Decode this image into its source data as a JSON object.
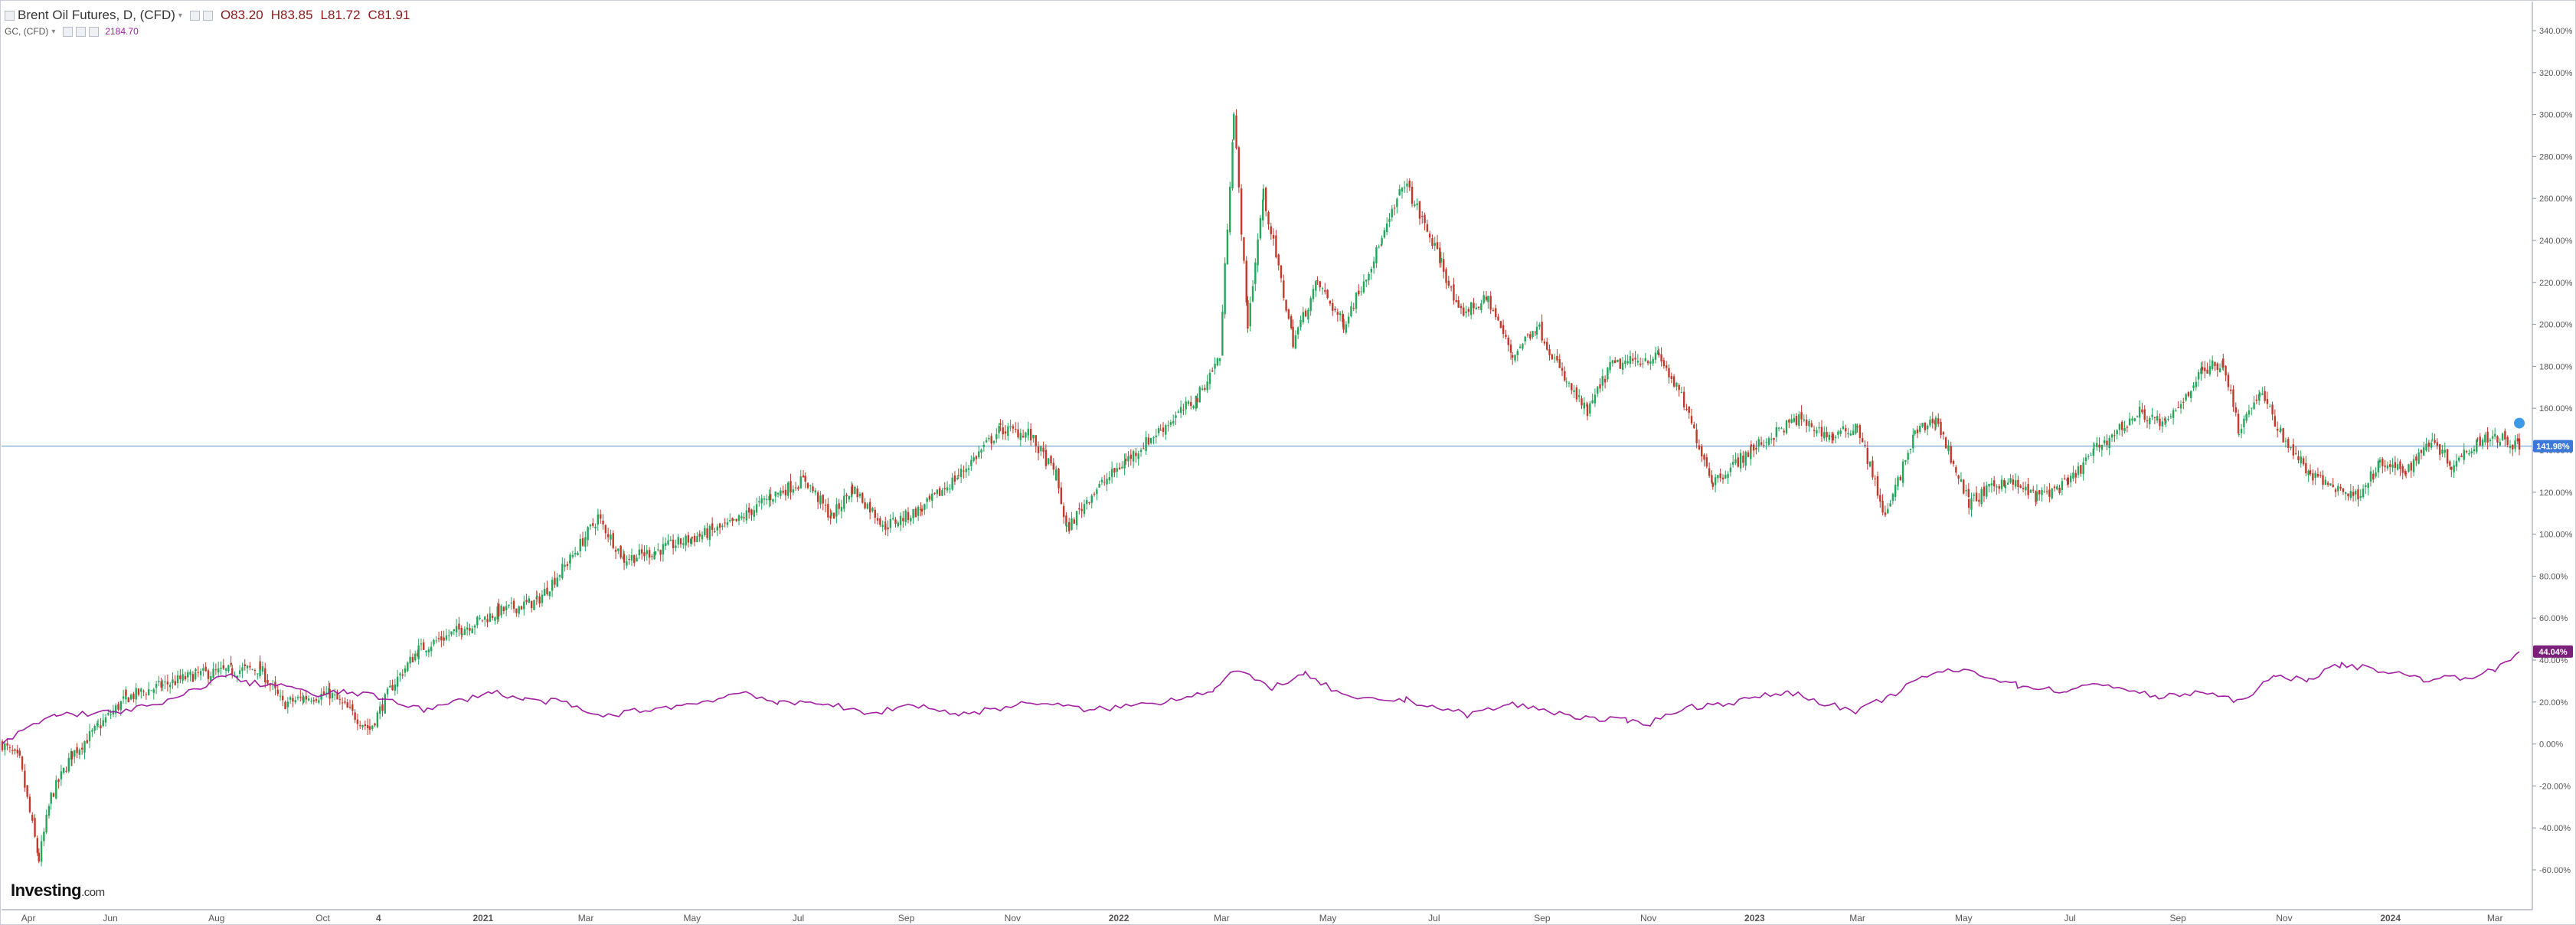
{
  "legend": {
    "instrument": "Brent Oil Futures, D, (CFD)",
    "open": "O83.20",
    "high": "H83.85",
    "low": "L81.72",
    "close": "C81.91",
    "compare_symbol": "GC, (CFD)",
    "compare_value": "2184.70"
  },
  "logo": {
    "name": "Investing",
    "suffix": ".com"
  },
  "colors": {
    "up_candle": "#26a65b",
    "down_candle": "#c0392b",
    "compare_line": "#a020a0",
    "current_line": "#8ab4d8",
    "current_label_bg": "#3c78d8",
    "compare_label_bg": "#7a1f7a"
  },
  "chart_data": {
    "type": "line",
    "title": "Brent Oil Futures, D, (CFD)",
    "xlabel": "",
    "ylabel": "",
    "y_unit": "%",
    "ylim": [
      -70,
      350
    ],
    "x_range": [
      "2020-03-31",
      "2024-03-15"
    ],
    "grid": false,
    "x_ticks": [
      {
        "date": "2020-04-15",
        "label": "Apr"
      },
      {
        "date": "2020-06-01",
        "label": "Jun"
      },
      {
        "date": "2020-08-01",
        "label": "Aug"
      },
      {
        "date": "2020-10-01",
        "label": "Oct"
      },
      {
        "date": "2020-11-02",
        "label": "4"
      },
      {
        "date": "2021-01-01",
        "label": "2021"
      },
      {
        "date": "2021-03-01",
        "label": "Mar"
      },
      {
        "date": "2021-05-01",
        "label": "May"
      },
      {
        "date": "2021-07-01",
        "label": "Jul"
      },
      {
        "date": "2021-09-01",
        "label": "Sep"
      },
      {
        "date": "2021-11-01",
        "label": "Nov"
      },
      {
        "date": "2022-01-01",
        "label": "2022"
      },
      {
        "date": "2022-03-01",
        "label": "Mar"
      },
      {
        "date": "2022-05-01",
        "label": "May"
      },
      {
        "date": "2022-07-01",
        "label": "Jul"
      },
      {
        "date": "2022-09-01",
        "label": "Sep"
      },
      {
        "date": "2022-11-01",
        "label": "Nov"
      },
      {
        "date": "2023-01-01",
        "label": "2023"
      },
      {
        "date": "2023-03-01",
        "label": "Mar"
      },
      {
        "date": "2023-05-01",
        "label": "May"
      },
      {
        "date": "2023-07-01",
        "label": "Jul"
      },
      {
        "date": "2023-09-01",
        "label": "Sep"
      },
      {
        "date": "2023-11-01",
        "label": "Nov"
      },
      {
        "date": "2024-01-01",
        "label": "2024"
      },
      {
        "date": "2024-03-01",
        "label": "Mar"
      }
    ],
    "y_ticks": [
      {
        "value": 340,
        "label": "340.00%"
      },
      {
        "value": 320,
        "label": "320.00%"
      },
      {
        "value": 300,
        "label": "300.00%"
      },
      {
        "value": 280,
        "label": "280.00%"
      },
      {
        "value": 260,
        "label": "260.00%"
      },
      {
        "value": 240,
        "label": "240.00%"
      },
      {
        "value": 220,
        "label": "220.00%"
      },
      {
        "value": 200,
        "label": "200.00%"
      },
      {
        "value": 180,
        "label": "180.00%"
      },
      {
        "value": 160,
        "label": "160.00%"
      },
      {
        "value": 140,
        "label": "140.00%"
      },
      {
        "value": 120,
        "label": "120.00%"
      },
      {
        "value": 100,
        "label": "100.00%"
      },
      {
        "value": 80,
        "label": "80.00%"
      },
      {
        "value": 60,
        "label": "60.00%"
      },
      {
        "value": 40,
        "label": "40.00%"
      },
      {
        "value": 20,
        "label": "20.00%"
      },
      {
        "value": 0,
        "label": "0.00%"
      },
      {
        "value": -20,
        "label": "-20.00%"
      },
      {
        "value": -40,
        "label": "-40.00%"
      },
      {
        "value": -60,
        "label": "-60.00%"
      }
    ],
    "current_levels": [
      {
        "value": 141.98,
        "label": "141.98%"
      },
      {
        "value": 44.04,
        "label": "44.04%"
      }
    ],
    "series": [
      {
        "name": "Brent Oil Futures, D, (CFD)",
        "style": "candlestick",
        "points": [
          {
            "x": "2020-03-31",
            "y": 0
          },
          {
            "x": "2020-04-10",
            "y": -8
          },
          {
            "x": "2020-04-21",
            "y": -55
          },
          {
            "x": "2020-04-28",
            "y": -25
          },
          {
            "x": "2020-05-10",
            "y": -5
          },
          {
            "x": "2020-05-25",
            "y": 8
          },
          {
            "x": "2020-06-10",
            "y": 22
          },
          {
            "x": "2020-07-01",
            "y": 28
          },
          {
            "x": "2020-07-20",
            "y": 33
          },
          {
            "x": "2020-08-10",
            "y": 35
          },
          {
            "x": "2020-08-26",
            "y": 36
          },
          {
            "x": "2020-09-08",
            "y": 19
          },
          {
            "x": "2020-09-20",
            "y": 22
          },
          {
            "x": "2020-10-05",
            "y": 24
          },
          {
            "x": "2020-10-28",
            "y": 7
          },
          {
            "x": "2020-11-10",
            "y": 28
          },
          {
            "x": "2020-11-25",
            "y": 45
          },
          {
            "x": "2020-12-20",
            "y": 55
          },
          {
            "x": "2021-01-10",
            "y": 63
          },
          {
            "x": "2021-02-01",
            "y": 68
          },
          {
            "x": "2021-02-20",
            "y": 88
          },
          {
            "x": "2021-03-08",
            "y": 108
          },
          {
            "x": "2021-03-23",
            "y": 88
          },
          {
            "x": "2021-04-10",
            "y": 92
          },
          {
            "x": "2021-05-01",
            "y": 98
          },
          {
            "x": "2021-05-25",
            "y": 105
          },
          {
            "x": "2021-06-15",
            "y": 118
          },
          {
            "x": "2021-07-05",
            "y": 126
          },
          {
            "x": "2021-07-20",
            "y": 108
          },
          {
            "x": "2021-08-01",
            "y": 122
          },
          {
            "x": "2021-08-20",
            "y": 104
          },
          {
            "x": "2021-09-10",
            "y": 112
          },
          {
            "x": "2021-10-01",
            "y": 128
          },
          {
            "x": "2021-10-25",
            "y": 150
          },
          {
            "x": "2021-11-10",
            "y": 148
          },
          {
            "x": "2021-11-26",
            "y": 128
          },
          {
            "x": "2021-12-02",
            "y": 102
          },
          {
            "x": "2021-12-15",
            "y": 118
          },
          {
            "x": "2022-01-05",
            "y": 135
          },
          {
            "x": "2022-01-25",
            "y": 150
          },
          {
            "x": "2022-02-15",
            "y": 165
          },
          {
            "x": "2022-02-28",
            "y": 185
          },
          {
            "x": "2022-03-08",
            "y": 300
          },
          {
            "x": "2022-03-16",
            "y": 200
          },
          {
            "x": "2022-03-25",
            "y": 262
          },
          {
            "x": "2022-04-11",
            "y": 192
          },
          {
            "x": "2022-04-25",
            "y": 220
          },
          {
            "x": "2022-05-10",
            "y": 200
          },
          {
            "x": "2022-06-01",
            "y": 240
          },
          {
            "x": "2022-06-14",
            "y": 268
          },
          {
            "x": "2022-07-05",
            "y": 230
          },
          {
            "x": "2022-07-15",
            "y": 205
          },
          {
            "x": "2022-08-01",
            "y": 212
          },
          {
            "x": "2022-08-15",
            "y": 185
          },
          {
            "x": "2022-08-29",
            "y": 200
          },
          {
            "x": "2022-09-15",
            "y": 172
          },
          {
            "x": "2022-09-27",
            "y": 158
          },
          {
            "x": "2022-10-10",
            "y": 180
          },
          {
            "x": "2022-11-07",
            "y": 185
          },
          {
            "x": "2022-11-20",
            "y": 165
          },
          {
            "x": "2022-12-08",
            "y": 125
          },
          {
            "x": "2022-12-30",
            "y": 140
          },
          {
            "x": "2023-01-25",
            "y": 155
          },
          {
            "x": "2023-02-15",
            "y": 146
          },
          {
            "x": "2023-03-01",
            "y": 152
          },
          {
            "x": "2023-03-17",
            "y": 108
          },
          {
            "x": "2023-04-03",
            "y": 148
          },
          {
            "x": "2023-04-15",
            "y": 155
          },
          {
            "x": "2023-05-04",
            "y": 115
          },
          {
            "x": "2023-05-25",
            "y": 126
          },
          {
            "x": "2023-06-12",
            "y": 118
          },
          {
            "x": "2023-06-30",
            "y": 124
          },
          {
            "x": "2023-07-15",
            "y": 140
          },
          {
            "x": "2023-08-10",
            "y": 158
          },
          {
            "x": "2023-08-25",
            "y": 152
          },
          {
            "x": "2023-09-15",
            "y": 178
          },
          {
            "x": "2023-09-27",
            "y": 182
          },
          {
            "x": "2023-10-06",
            "y": 150
          },
          {
            "x": "2023-10-18",
            "y": 168
          },
          {
            "x": "2023-10-30",
            "y": 148
          },
          {
            "x": "2023-11-16",
            "y": 128
          },
          {
            "x": "2023-12-12",
            "y": 118
          },
          {
            "x": "2023-12-26",
            "y": 133
          },
          {
            "x": "2024-01-10",
            "y": 130
          },
          {
            "x": "2024-01-25",
            "y": 146
          },
          {
            "x": "2024-02-05",
            "y": 133
          },
          {
            "x": "2024-02-20",
            "y": 145
          },
          {
            "x": "2024-03-01",
            "y": 147
          },
          {
            "x": "2024-03-15",
            "y": 142
          }
        ]
      },
      {
        "name": "GC, (CFD)",
        "style": "line",
        "points": [
          {
            "x": "2020-03-31",
            "y": 0
          },
          {
            "x": "2020-04-15",
            "y": 8
          },
          {
            "x": "2020-05-01",
            "y": 14
          },
          {
            "x": "2020-06-01",
            "y": 15
          },
          {
            "x": "2020-07-01",
            "y": 19
          },
          {
            "x": "2020-07-20",
            "y": 26
          },
          {
            "x": "2020-08-06",
            "y": 33
          },
          {
            "x": "2020-08-20",
            "y": 29
          },
          {
            "x": "2020-09-10",
            "y": 28
          },
          {
            "x": "2020-09-25",
            "y": 23
          },
          {
            "x": "2020-10-15",
            "y": 25
          },
          {
            "x": "2020-11-10",
            "y": 21
          },
          {
            "x": "2020-11-30",
            "y": 16
          },
          {
            "x": "2020-12-20",
            "y": 21
          },
          {
            "x": "2021-01-06",
            "y": 25
          },
          {
            "x": "2021-01-25",
            "y": 21
          },
          {
            "x": "2021-02-15",
            "y": 20
          },
          {
            "x": "2021-03-08",
            "y": 13
          },
          {
            "x": "2021-04-01",
            "y": 16
          },
          {
            "x": "2021-05-01",
            "y": 19
          },
          {
            "x": "2021-06-01",
            "y": 25
          },
          {
            "x": "2021-06-20",
            "y": 19
          },
          {
            "x": "2021-07-15",
            "y": 20
          },
          {
            "x": "2021-08-09",
            "y": 14
          },
          {
            "x": "2021-09-05",
            "y": 19
          },
          {
            "x": "2021-10-01",
            "y": 14
          },
          {
            "x": "2021-11-15",
            "y": 20
          },
          {
            "x": "2021-12-15",
            "y": 16
          },
          {
            "x": "2022-01-25",
            "y": 20
          },
          {
            "x": "2022-02-25",
            "y": 26
          },
          {
            "x": "2022-03-08",
            "y": 35
          },
          {
            "x": "2022-03-30",
            "y": 27
          },
          {
            "x": "2022-04-18",
            "y": 33
          },
          {
            "x": "2022-05-15",
            "y": 21
          },
          {
            "x": "2022-06-15",
            "y": 21
          },
          {
            "x": "2022-07-20",
            "y": 14
          },
          {
            "x": "2022-08-15",
            "y": 19
          },
          {
            "x": "2022-09-28",
            "y": 12
          },
          {
            "x": "2022-10-20",
            "y": 11
          },
          {
            "x": "2022-11-02",
            "y": 10
          },
          {
            "x": "2022-11-20",
            "y": 17
          },
          {
            "x": "2022-12-20",
            "y": 20
          },
          {
            "x": "2023-01-20",
            "y": 25
          },
          {
            "x": "2023-02-28",
            "y": 15
          },
          {
            "x": "2023-03-20",
            "y": 23
          },
          {
            "x": "2023-04-13",
            "y": 34
          },
          {
            "x": "2023-05-04",
            "y": 35
          },
          {
            "x": "2023-06-01",
            "y": 28
          },
          {
            "x": "2023-06-29",
            "y": 25
          },
          {
            "x": "2023-07-20",
            "y": 29
          },
          {
            "x": "2023-08-21",
            "y": 22
          },
          {
            "x": "2023-09-15",
            "y": 25
          },
          {
            "x": "2023-10-05",
            "y": 20
          },
          {
            "x": "2023-10-27",
            "y": 32
          },
          {
            "x": "2023-11-15",
            "y": 31
          },
          {
            "x": "2023-12-04",
            "y": 38
          },
          {
            "x": "2023-12-28",
            "y": 35
          },
          {
            "x": "2024-01-20",
            "y": 31
          },
          {
            "x": "2024-02-14",
            "y": 32
          },
          {
            "x": "2024-03-01",
            "y": 35
          },
          {
            "x": "2024-03-15",
            "y": 44
          }
        ]
      }
    ]
  }
}
